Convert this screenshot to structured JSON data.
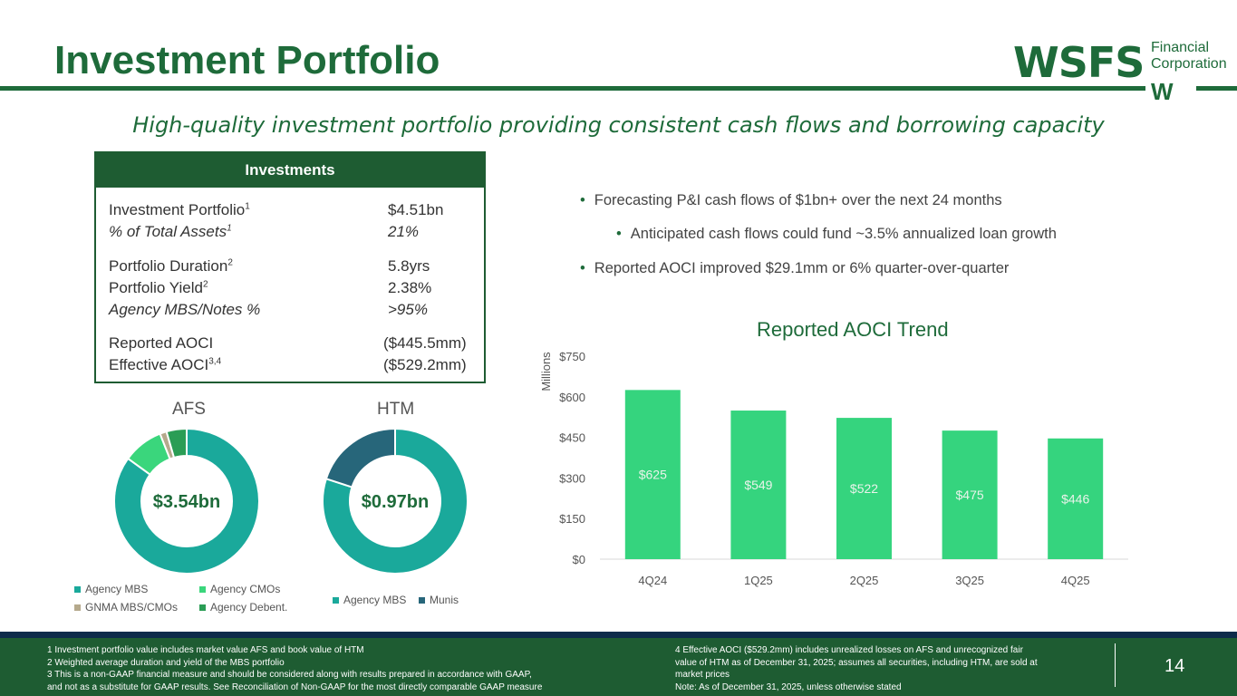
{
  "header": {
    "title": "Investment Portfolio",
    "subtitle": "High-quality investment portfolio providing consistent cash flows and borrowing capacity",
    "logo": {
      "main": "WSFS",
      "line1": "Financial",
      "line2": "Corporation",
      "mark": "W"
    }
  },
  "investments": {
    "header": "Investments",
    "rows": [
      {
        "label": "Investment Portfolio",
        "sup": "1",
        "value": "$4.51bn"
      },
      {
        "label": "% of Total Assets",
        "sup": "1",
        "value": "21%"
      },
      {
        "label": "Portfolio Duration",
        "sup": "2",
        "value": "5.8yrs"
      },
      {
        "label": "Portfolio Yield",
        "sup": "2",
        "value": "2.38%"
      },
      {
        "label": "Agency MBS/Notes %",
        "sup": "",
        "value": ">95%"
      },
      {
        "label": "Reported AOCI",
        "sup": "",
        "value": "($445.5mm)"
      },
      {
        "label": "Effective AOCI",
        "sup": "3,4",
        "value": "($529.2mm)"
      }
    ]
  },
  "colors": {
    "green": "#1e6b3a",
    "agency_mbs": "#1aa99b",
    "agency_cmos": "#3ad67c",
    "gnma": "#b5a98c",
    "agency_debent": "#2a9d55",
    "munis": "#27667a",
    "bar": "#35d47e"
  },
  "donuts": [
    {
      "label": "AFS",
      "center": "$3.54bn",
      "chart_data": {
        "type": "pie",
        "categories": [
          "Agency MBS",
          "Agency CMOs",
          "GNMA MBS/CMOs",
          "Agency Debent."
        ],
        "values": [
          85,
          9,
          1.5,
          4.5
        ]
      },
      "legend": [
        "Agency MBS",
        "Agency CMOs",
        "GNMA MBS/CMOs",
        "Agency Debent."
      ]
    },
    {
      "label": "HTM",
      "center": "$0.97bn",
      "chart_data": {
        "type": "pie",
        "categories": [
          "Agency MBS",
          "Munis"
        ],
        "values": [
          80,
          20
        ]
      },
      "legend": [
        "Agency MBS",
        "Munis"
      ]
    }
  ],
  "bullets": [
    "Forecasting P&I cash flows of $1bn+ over the next 24 months",
    "Anticipated cash flows could fund  ~3.5% annualized loan growth",
    "Reported AOCI improved $29.1mm or 6% quarter-over-quarter"
  ],
  "chart_data": {
    "type": "bar",
    "title": "Reported AOCI Trend",
    "ylabel": "Millions",
    "categories": [
      "4Q24",
      "1Q25",
      "2Q25",
      "3Q25",
      "4Q25"
    ],
    "values": [
      625,
      549,
      522,
      475,
      446
    ],
    "value_labels": [
      "$625",
      "$549",
      "$522",
      "$475",
      "$446"
    ],
    "ylim": [
      0,
      750
    ],
    "yticks": [
      "$0",
      "$150",
      "$300",
      "$450",
      "$600",
      "$750"
    ]
  },
  "footnotes_left": [
    "1 Investment portfolio value includes market value AFS and book value of HTM",
    "2 Weighted average duration and yield of the MBS portfolio",
    "3 This is a non-GAAP financial measure and should be considered along with results prepared in accordance with GAAP,",
    "and not as a substitute for GAAP results. See Reconciliation of Non-GAAP for the most directly comparable GAAP measure"
  ],
  "footnotes_right": [
    "4 Effective AOCI ($529.2mm) includes unrealized losses on AFS and unrecognized fair",
    "value of HTM as of December 31, 2025; assumes all securities, including HTM, are sold at",
    "market prices",
    "Note: As of December 31, 2025, unless otherwise stated"
  ],
  "page_number": "14"
}
